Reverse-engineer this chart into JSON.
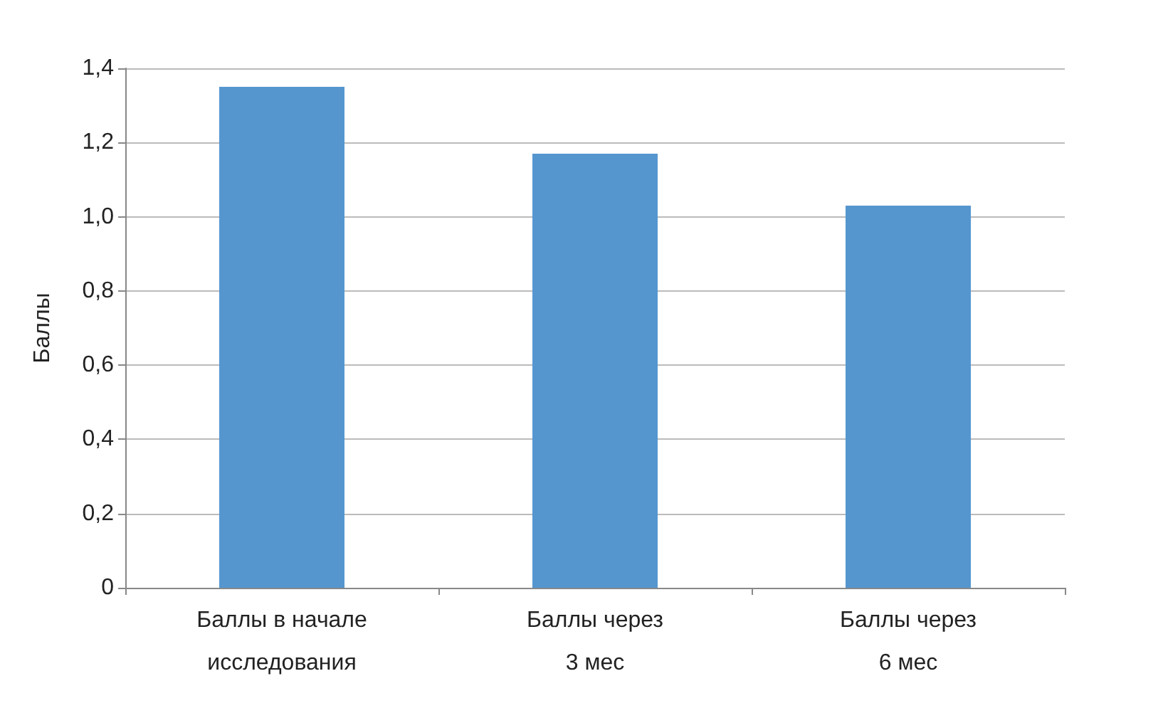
{
  "chart_data": {
    "type": "bar",
    "ylabel": "Баллы",
    "categories": [
      "Баллы в начале\nисследования",
      "Баллы через\n3 мес",
      "Баллы через\n6 мес"
    ],
    "values": [
      1.35,
      1.17,
      1.03
    ],
    "color": "#5596cf",
    "ylim": [
      0,
      1.4
    ],
    "yticks": [
      0,
      {
        "value": 0.2,
        "label": "0,2"
      },
      {
        "value": 0.4,
        "label": "0,4"
      },
      {
        "value": 0.6,
        "label": "0,6"
      },
      {
        "value": 0.8,
        "label": "0,8"
      },
      {
        "value": 1.0,
        "label": "1,0"
      },
      {
        "value": 1.2,
        "label": "1,2"
      },
      {
        "value": 1.4,
        "label": "1,4"
      }
    ],
    "grid": true
  }
}
